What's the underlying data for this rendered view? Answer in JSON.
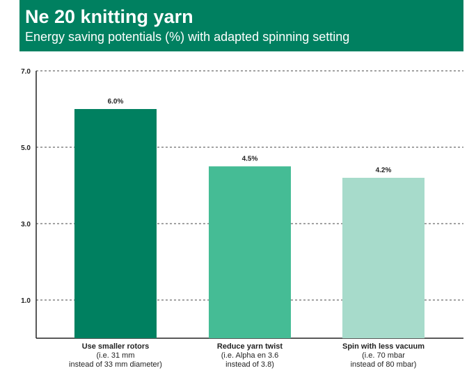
{
  "header": {
    "title": "Ne 20 knitting yarn",
    "subtitle": "Energy saving potentials (%) with adapted spinning setting"
  },
  "colors": {
    "header_bg": "#008060",
    "bars": [
      "#008060",
      "#45BC95",
      "#A7DBCB"
    ]
  },
  "chart_data": {
    "type": "bar",
    "title": "Ne 20 knitting yarn",
    "subtitle": "Energy saving potentials (%) with adapted spinning setting",
    "categories": [
      "Use smaller rotors",
      "Reduce yarn twist",
      "Spin with less vacuum"
    ],
    "category_descriptions": [
      [
        "(i.e. 31 mm",
        "instead of 33 mm diameter)"
      ],
      [
        "(i.e. Alpha en 3.6",
        "instead of 3.8)"
      ],
      [
        "(i.e. 70 mbar",
        "instead of 80 mbar)"
      ]
    ],
    "values": [
      6.0,
      4.5,
      4.2
    ],
    "data_labels": [
      "6.0%",
      "4.5%",
      "4.2%"
    ],
    "ylim": [
      0,
      7.0
    ],
    "yticks": [
      1.0,
      3.0,
      5.0,
      7.0
    ],
    "ytick_labels": [
      "1.0",
      "3.0",
      "5.0",
      "7.0"
    ],
    "grid": "dashed-horizontal",
    "xlabel": "",
    "ylabel": ""
  }
}
